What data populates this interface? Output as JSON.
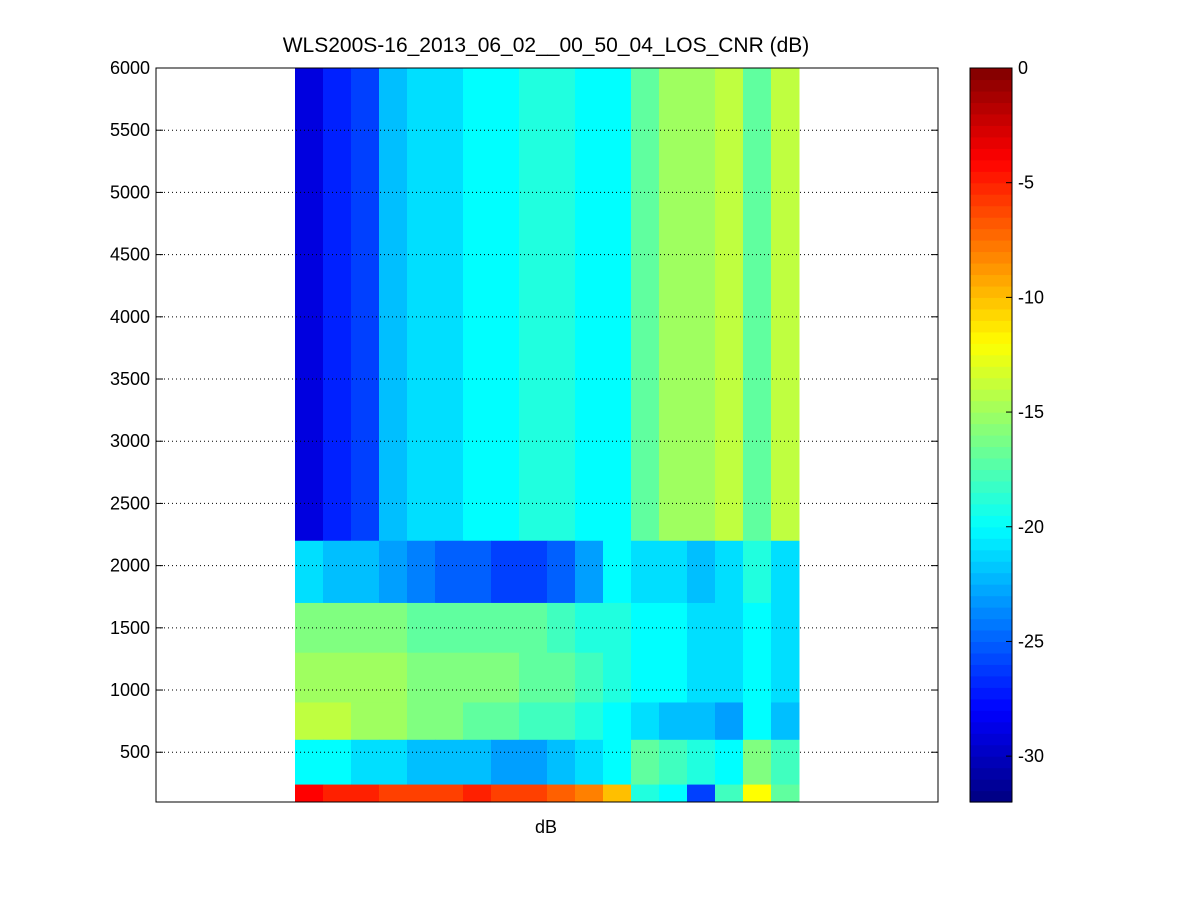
{
  "chart_data": {
    "type": "heatmap",
    "title": "WLS200S-16_2013_06_02__00_50_04_LOS_CNR (dB)",
    "xlabel": "dB",
    "ylabel": "",
    "ylim": [
      100,
      6000
    ],
    "yticks": [
      500,
      1000,
      1500,
      2000,
      2500,
      3000,
      3500,
      4000,
      4500,
      5000,
      5500,
      6000
    ],
    "grid": "horizontal dotted",
    "colormap": "jet",
    "colorbar": {
      "clim": [
        -32,
        0
      ],
      "ticks": [
        0,
        -5,
        -10,
        -15,
        -20,
        -25,
        -30
      ],
      "placement": "right"
    },
    "columns": 18,
    "range_bands": [
      {
        "from": 2200,
        "to": 6000,
        "values_by_column": [
          -29,
          -27,
          -26,
          -22,
          -21,
          -21,
          -20,
          -20,
          -19,
          -19,
          -20,
          -20,
          -17,
          -15,
          -15,
          -14,
          -17,
          -14
        ]
      },
      {
        "from": 1700,
        "to": 2200,
        "values_by_column": [
          -21,
          -22,
          -22,
          -23,
          -24,
          -25,
          -25,
          -26,
          -26,
          -25,
          -23,
          -20,
          -21,
          -21,
          -22,
          -21,
          -19,
          -21
        ]
      },
      {
        "from": 1300,
        "to": 1700,
        "values_by_column": [
          -16,
          -16,
          -16,
          -16,
          -17,
          -17,
          -17,
          -17,
          -17,
          -18,
          -19,
          -19,
          -20,
          -20,
          -21,
          -21,
          -20,
          -21
        ]
      },
      {
        "from": 900,
        "to": 1300,
        "values_by_column": [
          -15,
          -15,
          -15,
          -15,
          -16,
          -16,
          -16,
          -16,
          -17,
          -17,
          -18,
          -19,
          -20,
          -20,
          -21,
          -21,
          -20,
          -21
        ]
      },
      {
        "from": 600,
        "to": 900,
        "values_by_column": [
          -14,
          -14,
          -15,
          -15,
          -16,
          -16,
          -17,
          -17,
          -18,
          -18,
          -19,
          -20,
          -21,
          -22,
          -22,
          -23,
          -20,
          -22
        ]
      },
      {
        "from": 240,
        "to": 600,
        "values_by_column": [
          -20,
          -20,
          -21,
          -21,
          -22,
          -22,
          -22,
          -23,
          -23,
          -22,
          -21,
          -20,
          -17,
          -18,
          -19,
          -20,
          -16,
          -18
        ]
      },
      {
        "from": 100,
        "to": 240,
        "values_by_column": [
          -4,
          -5,
          -5,
          -6,
          -6,
          -6,
          -5,
          -6,
          -6,
          -7,
          -8,
          -10,
          -19,
          -20,
          -26,
          -18,
          -12,
          -17
        ]
      }
    ]
  }
}
